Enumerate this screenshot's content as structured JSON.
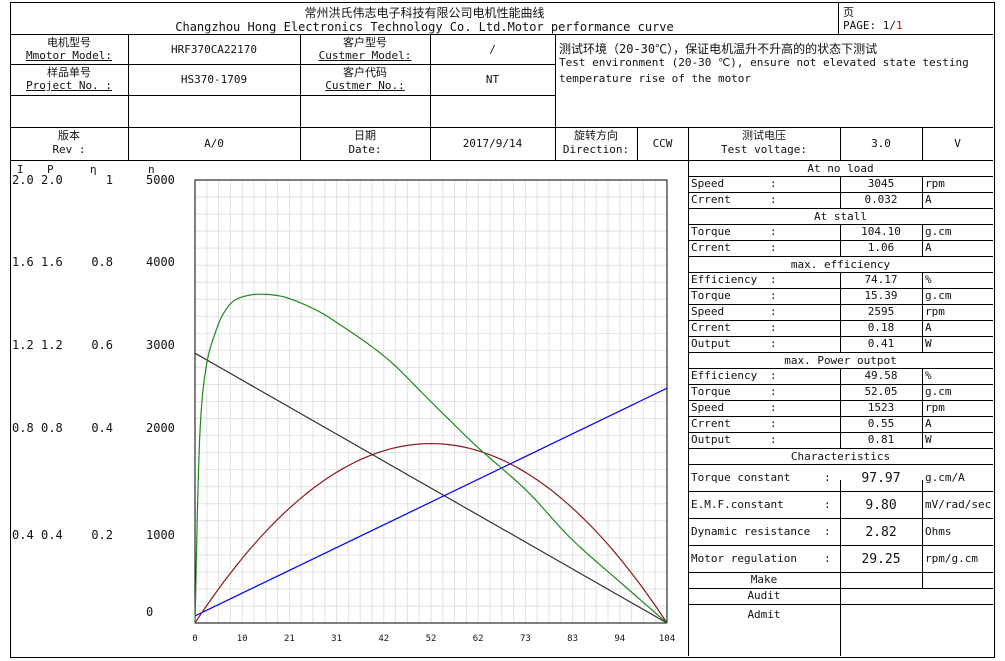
{
  "header": {
    "title_cn": "常州洪氏伟志电子科技有限公司电机性能曲线",
    "title_en": "Changzhou Hong Electronics Technology Co. Ltd.Motor performance curve",
    "page_cn": "页",
    "page_label": "PAGE: 1/",
    "page_num": "1"
  },
  "info": {
    "motor_model_label_cn": "电机型号",
    "motor_model_label_en": "Mmotor Model:",
    "motor_model": "HRF370CA22170",
    "cust_model_label_cn": "客户型号",
    "cust_model_label_en": "Custmer Model:",
    "cust_model": "/",
    "project_label_cn": "样品单号",
    "project_label_en": "Project No. :",
    "project_no": "HS370-1709",
    "cust_no_label_cn": "客户代码",
    "cust_no_label_en": "Custmer No.:",
    "cust_no": "NT",
    "env_cn": "测试环境（20-30℃），保证电机温升不升高的的状态下测试",
    "env_en1": "Test environment (20-30 ℃), ensure not elevated state testing",
    "env_en2": "temperature rise of the motor",
    "rev_label_cn": "版本",
    "rev_label_en": "Rev :",
    "rev": "A/0",
    "date_label_cn": "日期",
    "date_label_en": "Date:",
    "date": "2017/9/14",
    "dir_label_cn": "旋转方向",
    "dir_label_en": "Direction:",
    "direction": "CCW",
    "volt_label_cn": "测试电压",
    "volt_label_en": "Test voltage:",
    "voltage": "3.0",
    "volt_unit": "V"
  },
  "axis_headers": {
    "i": "I",
    "p": "P",
    "eta": "η",
    "n": "n"
  },
  "left_ticks": [
    {
      "i": "2.0",
      "p": "2.0",
      "eta": "1",
      "n": "5000"
    },
    {
      "i": "1.6",
      "p": "1.6",
      "eta": "0.8",
      "n": "4000"
    },
    {
      "i": "1.2",
      "p": "1.2",
      "eta": "0.6",
      "n": "3000"
    },
    {
      "i": "0.8",
      "p": "0.8",
      "eta": "0.4",
      "n": "2000"
    },
    {
      "i": "0.4",
      "p": "0.4",
      "eta": "0.2",
      "n": "1000"
    },
    {
      "i": "",
      "p": "",
      "eta": "",
      "n": "0"
    }
  ],
  "right_table": {
    "no_load_title": "At no load",
    "stall_title": "At stall",
    "max_eff_title": "max. efficiency",
    "max_out_title": "max. Power outpot",
    "char_title": "Characteristics",
    "rows": [
      {
        "label": "Speed",
        "colon": ":",
        "value": "3045",
        "unit": "rpm"
      },
      {
        "label": "Crrent",
        "colon": ":",
        "value": "0.032",
        "unit": "A"
      },
      {
        "label": "Torque",
        "colon": ":",
        "value": "104.10",
        "unit": "g.cm"
      },
      {
        "label": "Crrent",
        "colon": ":",
        "value": "1.06",
        "unit": "A"
      },
      {
        "label": "Efficiency",
        "colon": ":",
        "value": "74.17",
        "unit": "%"
      },
      {
        "label": "Torque",
        "colon": ":",
        "value": "15.39",
        "unit": "g.cm"
      },
      {
        "label": "Speed",
        "colon": ":",
        "value": "2595",
        "unit": "rpm"
      },
      {
        "label": "Crrent",
        "colon": ":",
        "value": "0.18",
        "unit": "A"
      },
      {
        "label": "Output",
        "colon": ":",
        "value": "0.41",
        "unit": "W"
      },
      {
        "label": "Efficiency",
        "colon": ":",
        "value": "49.58",
        "unit": "%"
      },
      {
        "label": "Torque",
        "colon": ":",
        "value": "52.05",
        "unit": "g.cm"
      },
      {
        "label": "Speed",
        "colon": ":",
        "value": "1523",
        "unit": "rpm"
      },
      {
        "label": "Crrent",
        "colon": ":",
        "value": "0.55",
        "unit": "A"
      },
      {
        "label": "Output",
        "colon": ":",
        "value": "0.81",
        "unit": "W"
      }
    ],
    "characteristics": [
      {
        "label": "Torque constant",
        "colon": ":",
        "value": "97.97",
        "unit": "g.cm/A"
      },
      {
        "label": "E.M.F.constant",
        "colon": ":",
        "value": "9.80",
        "unit": "mV/rad/sec"
      },
      {
        "label": "Dynamic resistance",
        "colon": ":",
        "value": "2.82",
        "unit": "Ohms"
      },
      {
        "label": "Motor regulation",
        "colon": ":",
        "value": "29.25",
        "unit": "rpm/g.cm"
      }
    ],
    "make": "Make",
    "audit": "Audit",
    "admit": "Admit"
  },
  "chart_data": {
    "type": "line",
    "x_ticks": [
      "0",
      "10",
      "21",
      "31",
      "42",
      "52",
      "62",
      "73",
      "83",
      "94",
      "104"
    ],
    "xlim": [
      0,
      104.1
    ],
    "series": [
      {
        "key": "speed",
        "color": "#333333",
        "ylim": [
          0,
          5000
        ],
        "x": [
          0,
          104.1
        ],
        "y": [
          3045,
          0
        ]
      },
      {
        "key": "current",
        "color": "#0000ff",
        "ylim": [
          0,
          2.0
        ],
        "x": [
          0,
          104.1
        ],
        "y": [
          0.032,
          1.06
        ]
      },
      {
        "key": "output",
        "color": "#8b1a1a",
        "ylim": [
          0,
          2.0
        ],
        "x": [
          0,
          10,
          21,
          31,
          42,
          52,
          62,
          73,
          83,
          94,
          104.1
        ],
        "y": [
          0,
          0.28,
          0.51,
          0.67,
          0.78,
          0.81,
          0.78,
          0.67,
          0.51,
          0.28,
          0
        ]
      },
      {
        "key": "efficiency",
        "color": "#1a8a1a",
        "ylim": [
          0,
          1
        ],
        "x": [
          0,
          1,
          2.5,
          5,
          7,
          9,
          12,
          15.4,
          20,
          26,
          31,
          42,
          52,
          62,
          73,
          83,
          94,
          104.1
        ],
        "y": [
          0,
          0.41,
          0.58,
          0.67,
          0.71,
          0.73,
          0.74,
          0.742,
          0.735,
          0.71,
          0.68,
          0.6,
          0.5,
          0.4,
          0.3,
          0.19,
          0.09,
          0
        ]
      }
    ]
  }
}
